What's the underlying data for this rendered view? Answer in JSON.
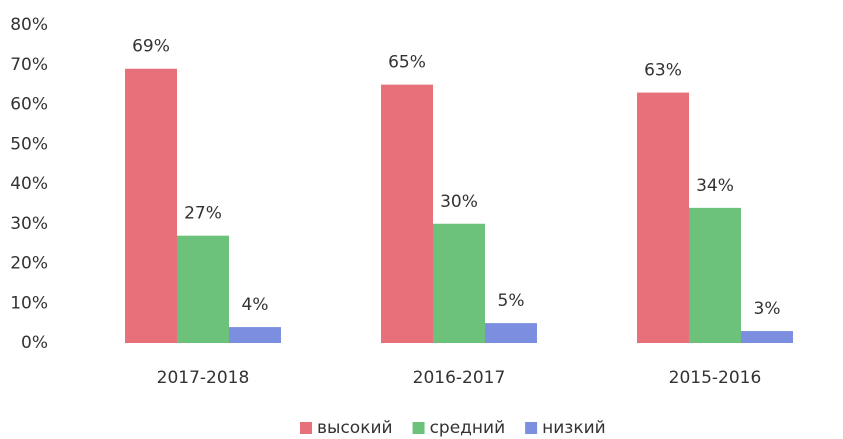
{
  "chart_data": {
    "type": "bar",
    "categories": [
      "2017-2018",
      "2016-2017",
      "2015-2016"
    ],
    "series": [
      {
        "name": "высокий",
        "color": "#e8707a",
        "values": [
          69,
          65,
          63
        ],
        "value_labels": [
          "69%",
          "65%",
          "63%"
        ]
      },
      {
        "name": "средний",
        "color": "#6cc27a",
        "values": [
          27,
          30,
          34
        ],
        "value_labels": [
          "27%",
          "30%",
          "34%"
        ]
      },
      {
        "name": "низкий",
        "color": "#7b8ee0",
        "values": [
          4,
          5,
          3
        ],
        "value_labels": [
          "4%",
          "5%",
          "3%"
        ]
      }
    ],
    "ylim": [
      0,
      80
    ],
    "yticks": [
      {
        "value": 0,
        "label": "0%"
      },
      {
        "value": 10,
        "label": "10%"
      },
      {
        "value": 20,
        "label": "20%"
      },
      {
        "value": 30,
        "label": "30%"
      },
      {
        "value": 40,
        "label": "40%"
      },
      {
        "value": 50,
        "label": "50%"
      },
      {
        "value": 60,
        "label": "60%"
      },
      {
        "value": 70,
        "label": "70%"
      },
      {
        "value": 80,
        "label": "80%"
      }
    ],
    "grid": false,
    "legend": "bottom"
  }
}
